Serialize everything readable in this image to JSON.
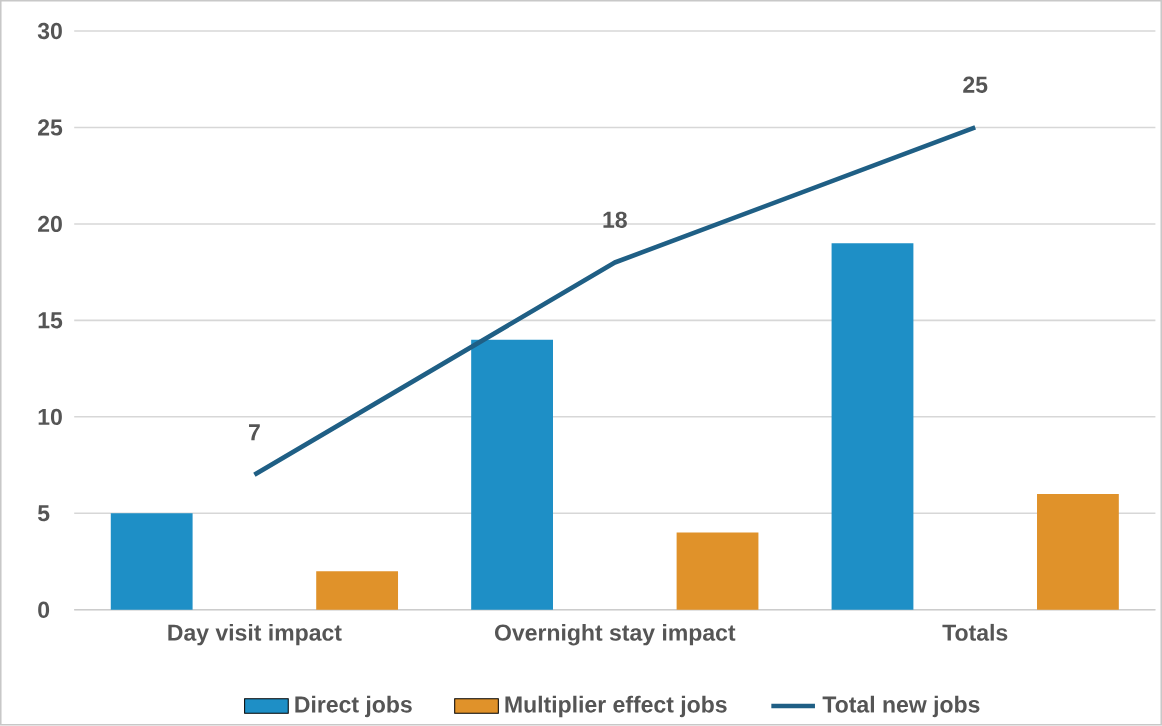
{
  "chart_data": {
    "type": "bar",
    "categories": [
      "Day visit impact",
      "Overnight stay impact",
      "Totals"
    ],
    "series": [
      {
        "name": "Direct jobs",
        "color": "#1e8fc6",
        "values": [
          5,
          14,
          19
        ]
      },
      {
        "name": "Multiplier effect jobs",
        "color": "#e0922a",
        "values": [
          2,
          4,
          6
        ]
      },
      {
        "name": "Total new jobs",
        "type": "line",
        "color": "#1f5f85",
        "values": [
          7,
          18,
          25
        ],
        "value_labels": [
          "7",
          "18",
          "25"
        ]
      }
    ],
    "ylim": [
      0,
      30
    ],
    "yticks": [
      0,
      5,
      10,
      15,
      20,
      25,
      30
    ],
    "grid": "y",
    "legend": "bottom"
  }
}
